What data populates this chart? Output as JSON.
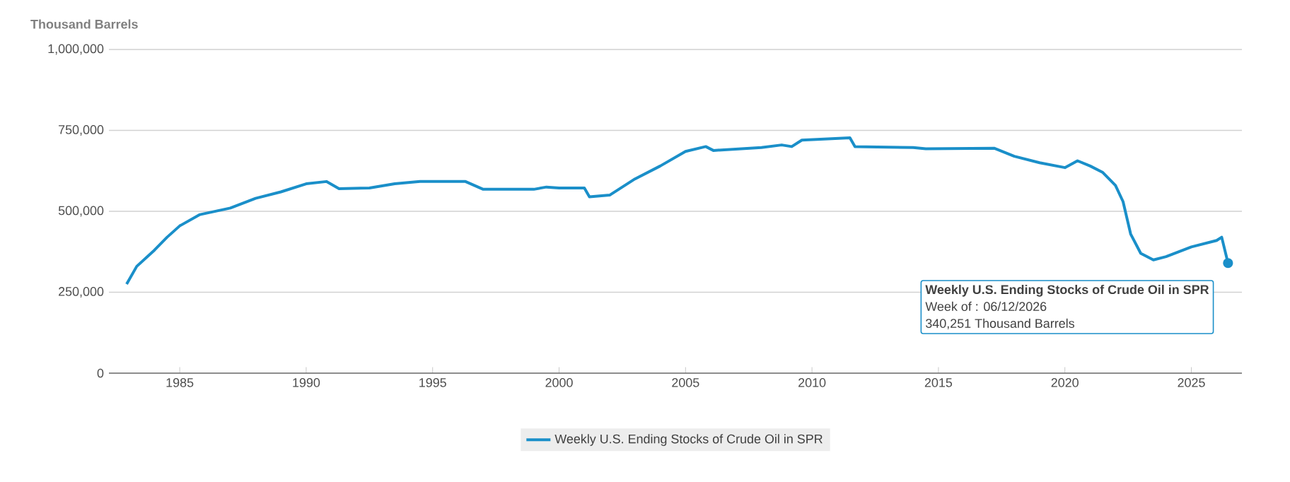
{
  "chart_data": {
    "type": "line",
    "ylabel": "Thousand Barrels",
    "x": [
      1982.9,
      1983.3,
      1984,
      1984.5,
      1985,
      1985.8,
      1987,
      1988,
      1989,
      1990,
      1990.8,
      1991.3,
      1992.5,
      1993.5,
      1994.5,
      1996.3,
      1997,
      1999,
      1999.5,
      2000,
      2001,
      2001.2,
      2002,
      2003,
      2004,
      2005,
      2005.8,
      2006.1,
      2008,
      2008.8,
      2009.2,
      2009.6,
      2011.5,
      2011.7,
      2014,
      2014.5,
      2017.2,
      2018,
      2019,
      2020,
      2020.5,
      2021,
      2021.5,
      2022,
      2022.3,
      2022.6,
      2023,
      2023.5,
      2024,
      2025,
      2026,
      2026.2,
      2026.45
    ],
    "series": [
      {
        "name": "Weekly U.S. Ending Stocks of Crude Oil in SPR",
        "color": "#1a8fc9",
        "values": [
          275000,
          330000,
          380000,
          420000,
          455000,
          490000,
          510000,
          540000,
          560000,
          585000,
          592000,
          570000,
          572000,
          585000,
          592000,
          592000,
          568000,
          568000,
          575000,
          572000,
          572000,
          545000,
          550000,
          600000,
          640000,
          685000,
          700000,
          688000,
          697000,
          705000,
          700000,
          720000,
          727000,
          700000,
          697000,
          693000,
          695000,
          670000,
          650000,
          635000,
          656000,
          640000,
          620000,
          580000,
          530000,
          430000,
          370000,
          350000,
          360000,
          390000,
          410000,
          420000,
          340251
        ]
      }
    ],
    "xlim": [
      1982.2,
      2027
    ],
    "xticks": [
      1985,
      1990,
      1995,
      2000,
      2005,
      2010,
      2015,
      2020,
      2025
    ],
    "ylim": [
      0,
      1000000
    ],
    "yticks": [
      {
        "value": 0,
        "label": "0"
      },
      {
        "value": 250000,
        "label": "250,000"
      },
      {
        "value": 500000,
        "label": "500,000"
      },
      {
        "value": 750000,
        "label": "750,000"
      },
      {
        "value": 1000000,
        "label": "1,000,000"
      }
    ],
    "grid": "y",
    "legend": "bottom",
    "marker": "none",
    "line_style": "solid",
    "annotations": [
      {
        "text": "Weekly U.S. Ending Stocks of Crude Oil in SPR",
        "x": 2026.45,
        "y": 340251
      },
      "Week of : 06/12/2026",
      "340,251 Thousand Barrels"
    ]
  }
}
